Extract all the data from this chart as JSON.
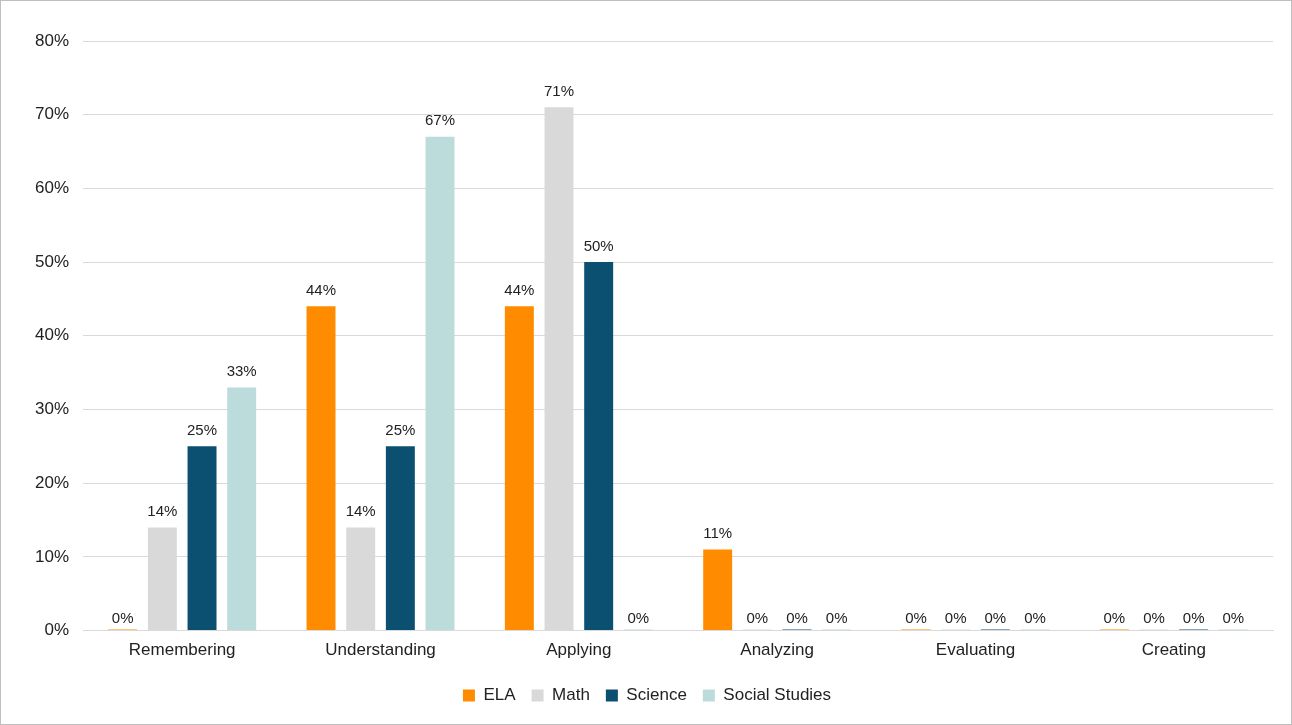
{
  "chart_data": {
    "type": "bar",
    "categories": [
      "Remembering",
      "Understanding",
      "Applying",
      "Analyzing",
      "Evaluating",
      "Creating"
    ],
    "series": [
      {
        "name": "ELA",
        "color": "#ff8c00",
        "values": [
          0,
          44,
          44,
          11,
          0,
          0
        ],
        "value_labels": [
          "0%",
          "44%",
          "44%",
          "11%",
          "0%",
          "0%"
        ]
      },
      {
        "name": "Math",
        "color": "#d9d9d9",
        "values": [
          14,
          14,
          71,
          0,
          0,
          0
        ],
        "value_labels": [
          "14%",
          "14%",
          "71%",
          "0%",
          "0%",
          "0%"
        ]
      },
      {
        "name": "Science",
        "color": "#0b4f71",
        "values": [
          25,
          25,
          50,
          0,
          0,
          0
        ],
        "value_labels": [
          "25%",
          "25%",
          "50%",
          "0%",
          "0%",
          "0%"
        ]
      },
      {
        "name": "Social Studies",
        "color": "#bcdcdc",
        "values": [
          33,
          67,
          0,
          0,
          0,
          0
        ],
        "value_labels": [
          "33%",
          "67%",
          "0%",
          "0%",
          "0%",
          "0%"
        ]
      }
    ],
    "ylim": [
      0,
      80
    ],
    "yticks": [
      {
        "value": 0,
        "label": "0%"
      },
      {
        "value": 10,
        "label": "10%"
      },
      {
        "value": 20,
        "label": "20%"
      },
      {
        "value": 30,
        "label": "30%"
      },
      {
        "value": 40,
        "label": "40%"
      },
      {
        "value": 50,
        "label": "50%"
      },
      {
        "value": 60,
        "label": "60%"
      },
      {
        "value": 70,
        "label": "70%"
      },
      {
        "value": 80,
        "label": "80%"
      }
    ],
    "grid": "y",
    "legend": "bottom"
  }
}
